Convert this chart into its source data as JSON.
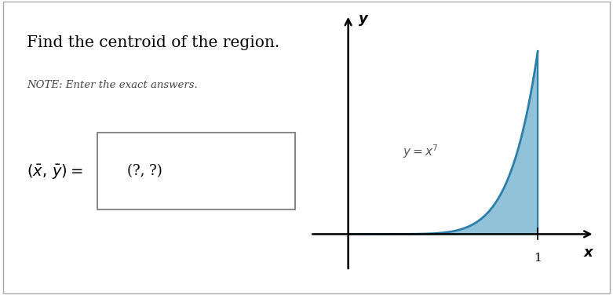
{
  "title": "Find the centroid of the region.",
  "subtitle": "NOTE: Enter the exact answers.",
  "box_text": "(?, ?)",
  "curve_label": "y = x^7",
  "x_axis_label": "x",
  "y_axis_label": "y",
  "x_tick_label": "1",
  "fill_color": "#7db9d3",
  "fill_alpha": 0.85,
  "curve_color": "#2e7fa8",
  "background_color": "#ffffff",
  "border_color": "#aaaaaa"
}
